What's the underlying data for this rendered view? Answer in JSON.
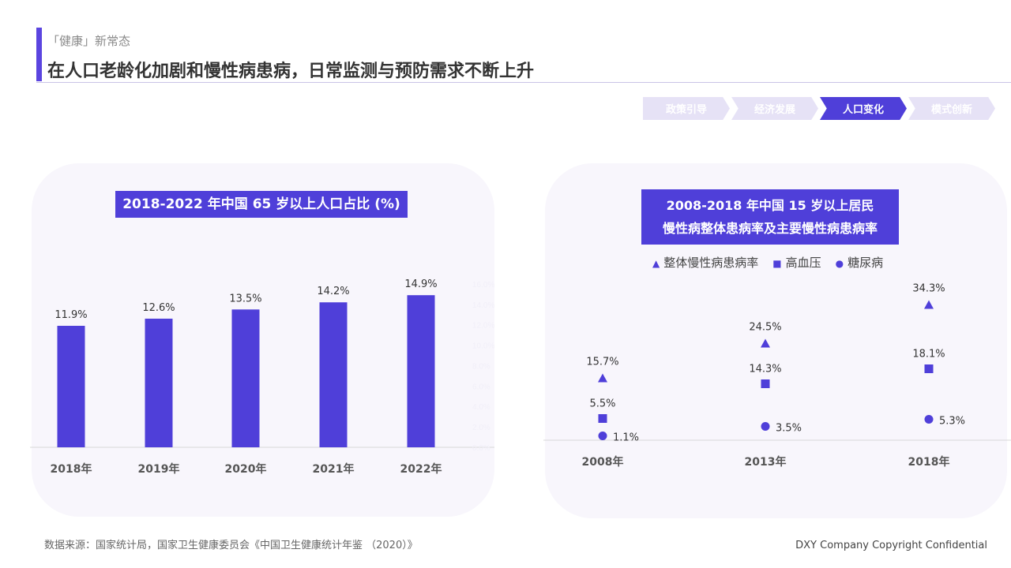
{
  "header": {
    "kicker": "「健康」新常态",
    "title": "在人口老龄化加剧和慢性病患病，日常监测与预防需求不断上升"
  },
  "steps": [
    {
      "label": "政策引导",
      "active": false
    },
    {
      "label": "经济发展",
      "active": false
    },
    {
      "label": "人口变化",
      "active": true
    },
    {
      "label": "模式创新",
      "active": false
    }
  ],
  "colors": {
    "accent": "#4f3fd9",
    "panel": "#f8f6fc",
    "inactive_step": "#e6e2f6"
  },
  "chart_data": [
    {
      "type": "bar",
      "title": "2018-2022 年中国 65 岁以上人口占比 (%)",
      "categories": [
        "2018年",
        "2019年",
        "2020年",
        "2021年",
        "2022年"
      ],
      "values": [
        11.9,
        12.6,
        13.5,
        14.2,
        14.9
      ],
      "data_labels": [
        "11.9%",
        "12.6%",
        "13.5%",
        "14.2%",
        "14.9%"
      ],
      "ylim": [
        0,
        16
      ],
      "yticks": [
        "0.0%",
        "2.0%",
        "4.0%",
        "6.0%",
        "8.0%",
        "10.0%",
        "12.0%",
        "14.0%",
        "16.0%"
      ],
      "grid": false
    },
    {
      "type": "scatter",
      "title_line1": "2008-2018 年中国 15 岁以上居民",
      "title_line2": "慢性病整体患病率及主要慢性病患病率",
      "categories": [
        "2008年",
        "2013年",
        "2018年"
      ],
      "legend_position": "top",
      "series": [
        {
          "name": "整体慢性病患病率",
          "marker": "triangle",
          "values": [
            15.7,
            24.5,
            34.3
          ],
          "labels": [
            "15.7%",
            "24.5%",
            "34.3%"
          ]
        },
        {
          "name": "高血压",
          "marker": "square",
          "values": [
            5.5,
            14.3,
            18.1
          ],
          "labels": [
            "5.5%",
            "14.3%",
            "18.1%"
          ]
        },
        {
          "name": "糖尿病",
          "marker": "circle",
          "values": [
            1.1,
            3.5,
            5.3
          ],
          "labels": [
            "1.1%",
            "3.5%",
            "5.3%"
          ]
        }
      ]
    }
  ],
  "footer": {
    "source": "数据来源：国家统计局，国家卫生健康委员会《中国卫生健康统计年鉴 （2020）》",
    "copyright": "DXY Company Copyright Confidential"
  }
}
